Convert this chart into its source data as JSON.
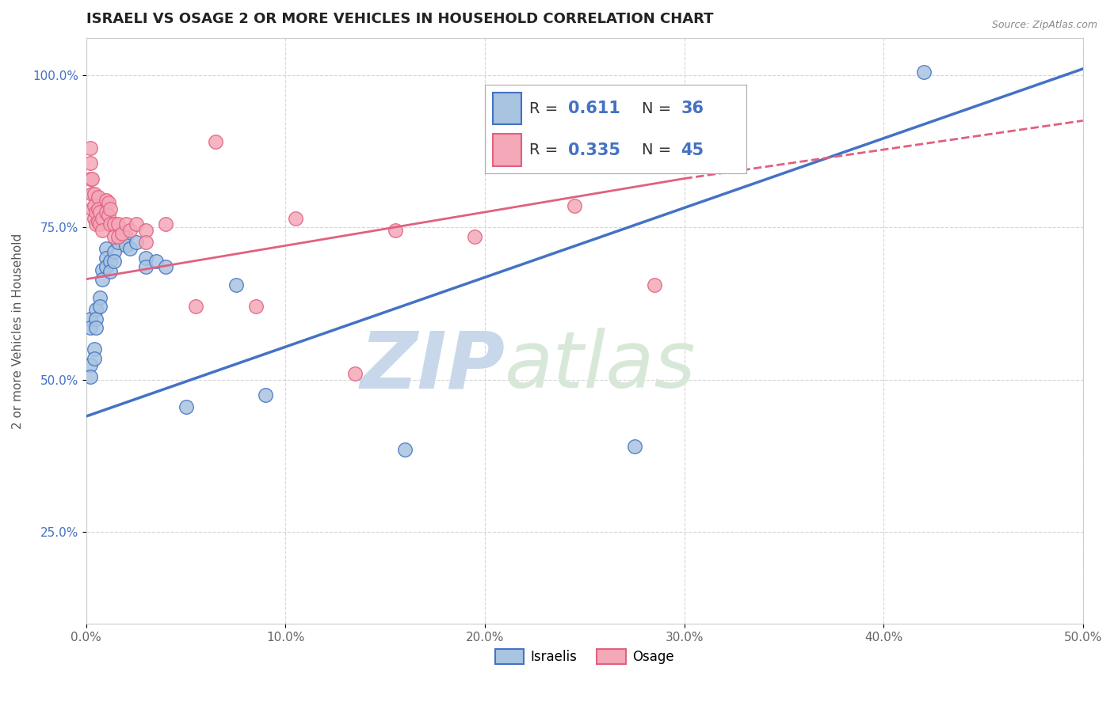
{
  "title": "ISRAELI VS OSAGE 2 OR MORE VEHICLES IN HOUSEHOLD CORRELATION CHART",
  "source_text": "Source: ZipAtlas.com",
  "ylabel": "2 or more Vehicles in Household",
  "xlabel": "",
  "xlim": [
    0.0,
    0.5
  ],
  "ylim": [
    0.1,
    1.06
  ],
  "ytick_labels": [
    "25.0%",
    "50.0%",
    "75.0%",
    "100.0%"
  ],
  "ytick_values": [
    0.25,
    0.5,
    0.75,
    1.0
  ],
  "xtick_labels": [
    "0.0%",
    "10.0%",
    "20.0%",
    "30.0%",
    "40.0%",
    "50.0%"
  ],
  "xtick_values": [
    0.0,
    0.1,
    0.2,
    0.3,
    0.4,
    0.5
  ],
  "israeli_color": "#a8c4e0",
  "osage_color": "#f4a8b8",
  "israeli_line_color": "#4472c4",
  "osage_line_color": "#e06080",
  "watermark_color": "#dae6f0",
  "R_israeli": 0.611,
  "N_israeli": 36,
  "R_osage": 0.335,
  "N_osage": 45,
  "israeli_line": [
    0.0,
    0.44,
    0.5,
    1.01
  ],
  "osage_line_solid": [
    0.0,
    0.665,
    0.3,
    0.83
  ],
  "osage_line_dashed": [
    0.3,
    0.83,
    0.5,
    0.925
  ],
  "israeli_points": [
    [
      0.002,
      0.525
    ],
    [
      0.002,
      0.505
    ],
    [
      0.002,
      0.6
    ],
    [
      0.002,
      0.585
    ],
    [
      0.004,
      0.55
    ],
    [
      0.004,
      0.535
    ],
    [
      0.005,
      0.615
    ],
    [
      0.005,
      0.6
    ],
    [
      0.005,
      0.585
    ],
    [
      0.007,
      0.635
    ],
    [
      0.007,
      0.62
    ],
    [
      0.008,
      0.68
    ],
    [
      0.008,
      0.665
    ],
    [
      0.01,
      0.715
    ],
    [
      0.01,
      0.7
    ],
    [
      0.01,
      0.685
    ],
    [
      0.012,
      0.695
    ],
    [
      0.012,
      0.678
    ],
    [
      0.014,
      0.71
    ],
    [
      0.014,
      0.695
    ],
    [
      0.016,
      0.725
    ],
    [
      0.018,
      0.74
    ],
    [
      0.02,
      0.735
    ],
    [
      0.02,
      0.72
    ],
    [
      0.022,
      0.715
    ],
    [
      0.025,
      0.725
    ],
    [
      0.03,
      0.7
    ],
    [
      0.03,
      0.685
    ],
    [
      0.035,
      0.695
    ],
    [
      0.04,
      0.685
    ],
    [
      0.05,
      0.455
    ],
    [
      0.075,
      0.655
    ],
    [
      0.09,
      0.475
    ],
    [
      0.16,
      0.385
    ],
    [
      0.275,
      0.39
    ],
    [
      0.42,
      1.005
    ]
  ],
  "osage_points": [
    [
      0.002,
      0.88
    ],
    [
      0.002,
      0.855
    ],
    [
      0.002,
      0.83
    ],
    [
      0.003,
      0.83
    ],
    [
      0.003,
      0.805
    ],
    [
      0.003,
      0.78
    ],
    [
      0.004,
      0.805
    ],
    [
      0.004,
      0.785
    ],
    [
      0.004,
      0.765
    ],
    [
      0.005,
      0.775
    ],
    [
      0.005,
      0.755
    ],
    [
      0.006,
      0.8
    ],
    [
      0.006,
      0.78
    ],
    [
      0.006,
      0.76
    ],
    [
      0.007,
      0.775
    ],
    [
      0.007,
      0.755
    ],
    [
      0.008,
      0.765
    ],
    [
      0.008,
      0.745
    ],
    [
      0.01,
      0.795
    ],
    [
      0.01,
      0.775
    ],
    [
      0.011,
      0.79
    ],
    [
      0.011,
      0.77
    ],
    [
      0.012,
      0.78
    ],
    [
      0.012,
      0.755
    ],
    [
      0.014,
      0.755
    ],
    [
      0.014,
      0.735
    ],
    [
      0.016,
      0.755
    ],
    [
      0.016,
      0.735
    ],
    [
      0.018,
      0.74
    ],
    [
      0.02,
      0.755
    ],
    [
      0.022,
      0.745
    ],
    [
      0.025,
      0.755
    ],
    [
      0.03,
      0.745
    ],
    [
      0.03,
      0.725
    ],
    [
      0.04,
      0.755
    ],
    [
      0.055,
      0.62
    ],
    [
      0.065,
      0.89
    ],
    [
      0.085,
      0.62
    ],
    [
      0.105,
      0.765
    ],
    [
      0.135,
      0.51
    ],
    [
      0.155,
      0.745
    ],
    [
      0.195,
      0.735
    ],
    [
      0.205,
      0.875
    ],
    [
      0.245,
      0.785
    ],
    [
      0.285,
      0.655
    ]
  ],
  "background_color": "#ffffff",
  "grid_color": "#cccccc",
  "title_fontsize": 13,
  "axis_label_fontsize": 11,
  "tick_fontsize": 11,
  "legend_fontsize": 15
}
